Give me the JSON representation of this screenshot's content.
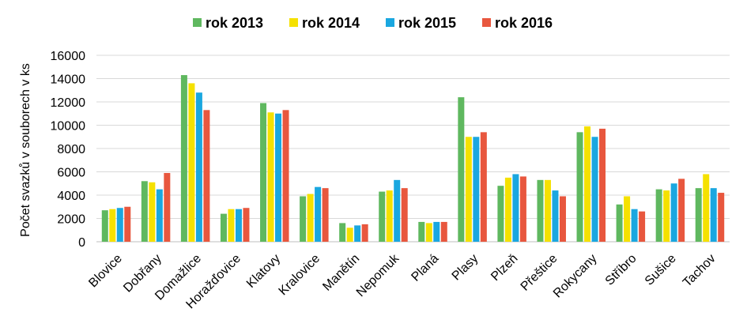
{
  "chart_data": {
    "type": "bar",
    "title": "",
    "xlabel": "",
    "ylabel": "Počet svazků v souborech v ks",
    "ylim": [
      0,
      16000
    ],
    "yticks": [
      0,
      2000,
      4000,
      6000,
      8000,
      10000,
      12000,
      14000,
      16000
    ],
    "grid": true,
    "legend_position": "top",
    "categories": [
      "Blovice",
      "Dobřany",
      "Domažlice",
      "Horažďovice",
      "Klatovy",
      "Kralovice",
      "Manětín",
      "Nepomuk",
      "Planá",
      "Plasy",
      "Plzeň",
      "Přeštice",
      "Rokycany",
      "Stříbro",
      "Sušice",
      "Tachov"
    ],
    "series": [
      {
        "name": "rok 2013",
        "color": "#5FB85F",
        "values": [
          2700,
          5200,
          14300,
          2400,
          11900,
          3900,
          1600,
          4300,
          1700,
          12400,
          4800,
          5300,
          9400,
          3200,
          4500,
          4600
        ]
      },
      {
        "name": "rok 2014",
        "color": "#F5E100",
        "values": [
          2800,
          5100,
          13600,
          2800,
          11100,
          4100,
          1200,
          4400,
          1600,
          9000,
          5500,
          5300,
          9900,
          3900,
          4400,
          5800
        ]
      },
      {
        "name": "rok 2015",
        "color": "#1AA7E0",
        "values": [
          2900,
          4500,
          12800,
          2800,
          11000,
          4700,
          1400,
          5300,
          1700,
          9000,
          5800,
          4400,
          9000,
          2800,
          5000,
          4600
        ]
      },
      {
        "name": "rok 2016",
        "color": "#E8573E",
        "values": [
          3000,
          5900,
          11300,
          2900,
          11300,
          4600,
          1500,
          4600,
          1700,
          9400,
          5600,
          3900,
          9700,
          2600,
          5400,
          4200
        ]
      }
    ]
  }
}
